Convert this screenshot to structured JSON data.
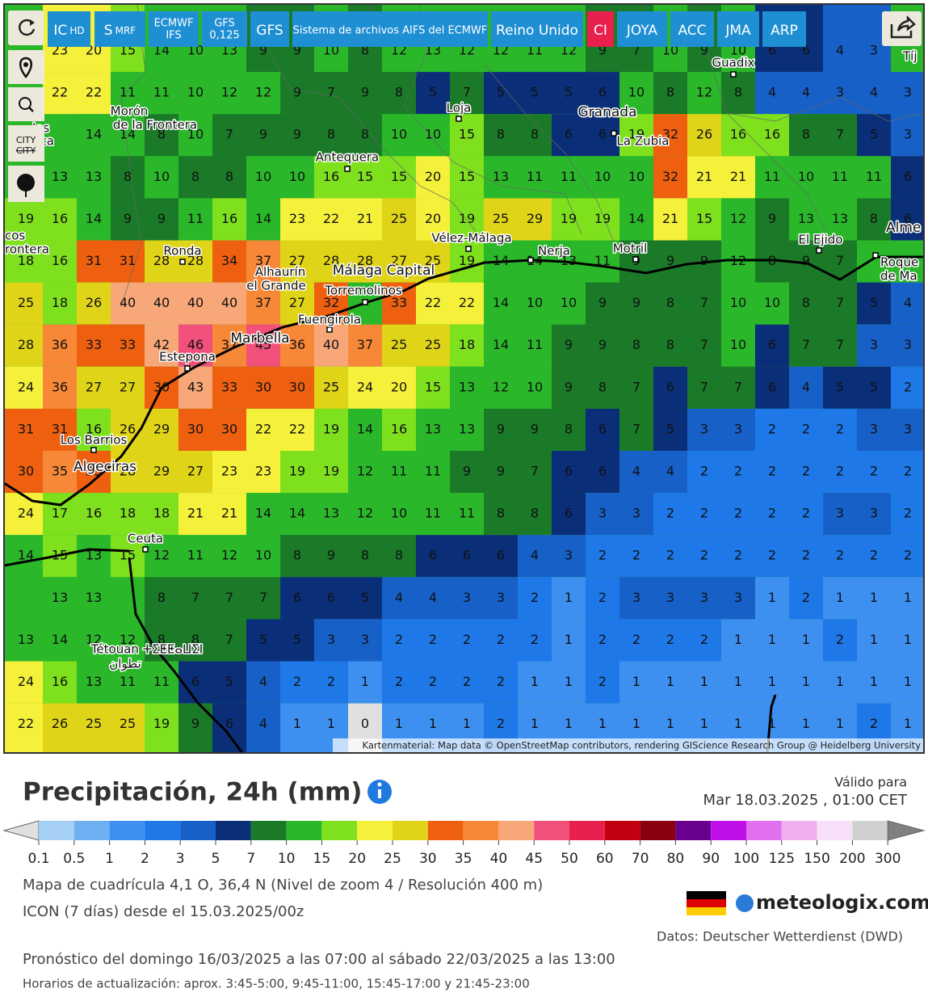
{
  "toolbar": {
    "buttons": [
      {
        "label": "IC",
        "sub": "HD"
      },
      {
        "label": "S",
        "sub": "MRF"
      },
      {
        "lines": [
          "ECMWF",
          "IFS"
        ]
      },
      {
        "lines": [
          "GFS",
          "0,125"
        ]
      },
      {
        "label": "GFS"
      },
      {
        "label": "Sistema de archivos AIFS del ECMWF"
      },
      {
        "label": "Reino Unido"
      },
      {
        "label": "CI"
      },
      {
        "label": "JOYA"
      },
      {
        "label": "ACC"
      },
      {
        "label": "JMA"
      },
      {
        "label": "ARP"
      }
    ],
    "city_toggle": [
      "CITY",
      "CITY"
    ]
  },
  "map": {
    "grid": [
      [
        null,
        23,
        20,
        15,
        14,
        10,
        13,
        9,
        9,
        10,
        8,
        12,
        13,
        12,
        12,
        11,
        12,
        9,
        7,
        10,
        9,
        10,
        6,
        6,
        4,
        3,
        null
      ],
      [
        null,
        22,
        22,
        11,
        11,
        10,
        12,
        12,
        9,
        7,
        9,
        8,
        5,
        7,
        5,
        5,
        5,
        6,
        10,
        8,
        12,
        8,
        4,
        4,
        3,
        4,
        3
      ],
      [
        null,
        null,
        14,
        14,
        8,
        10,
        7,
        9,
        9,
        8,
        8,
        10,
        10,
        15,
        8,
        8,
        6,
        6,
        19,
        32,
        26,
        16,
        16,
        8,
        7,
        5,
        3
      ],
      [
        null,
        13,
        13,
        8,
        10,
        8,
        8,
        10,
        10,
        16,
        15,
        15,
        20,
        15,
        13,
        11,
        11,
        10,
        10,
        32,
        21,
        21,
        11,
        10,
        11,
        11,
        6
      ],
      [
        19,
        16,
        14,
        9,
        9,
        11,
        16,
        14,
        23,
        22,
        21,
        25,
        20,
        19,
        25,
        29,
        19,
        19,
        14,
        21,
        15,
        12,
        9,
        13,
        13,
        8,
        6
      ],
      [
        18,
        16,
        31,
        31,
        28,
        28,
        34,
        37,
        27,
        28,
        28,
        27,
        25,
        19,
        14,
        14,
        13,
        11,
        9,
        9,
        9,
        12,
        8,
        9,
        7,
        null,
        null
      ],
      [
        25,
        18,
        26,
        40,
        40,
        40,
        40,
        37,
        27,
        32,
        null,
        33,
        22,
        22,
        14,
        10,
        10,
        9,
        9,
        8,
        7,
        10,
        10,
        8,
        7,
        5,
        4
      ],
      [
        28,
        36,
        33,
        33,
        42,
        46,
        37,
        45,
        36,
        40,
        37,
        25,
        25,
        18,
        14,
        11,
        9,
        9,
        8,
        8,
        7,
        10,
        6,
        7,
        7,
        3,
        3
      ],
      [
        24,
        36,
        27,
        27,
        30,
        43,
        33,
        30,
        30,
        25,
        24,
        20,
        15,
        13,
        12,
        10,
        9,
        8,
        7,
        6,
        7,
        7,
        6,
        4,
        5,
        5,
        2
      ],
      [
        31,
        31,
        16,
        26,
        29,
        30,
        30,
        22,
        22,
        19,
        14,
        16,
        13,
        13,
        9,
        9,
        8,
        6,
        7,
        5,
        3,
        3,
        2,
        2,
        2,
        3,
        3
      ],
      [
        30,
        35,
        33,
        28,
        29,
        27,
        23,
        23,
        19,
        19,
        12,
        11,
        11,
        9,
        9,
        7,
        6,
        6,
        4,
        4,
        2,
        2,
        2,
        2,
        2,
        2,
        2
      ],
      [
        24,
        17,
        16,
        18,
        18,
        21,
        21,
        14,
        14,
        13,
        12,
        10,
        11,
        11,
        8,
        8,
        6,
        3,
        3,
        2,
        2,
        2,
        2,
        2,
        3,
        3,
        2
      ],
      [
        14,
        15,
        13,
        15,
        12,
        11,
        12,
        10,
        8,
        9,
        8,
        8,
        6,
        6,
        6,
        4,
        3,
        2,
        2,
        2,
        2,
        2,
        2,
        2,
        2,
        2,
        2
      ],
      [
        null,
        13,
        13,
        null,
        8,
        7,
        7,
        7,
        6,
        6,
        5,
        4,
        4,
        3,
        3,
        2,
        1,
        2,
        3,
        3,
        3,
        3,
        1,
        2,
        1,
        1,
        1
      ],
      [
        13,
        14,
        12,
        12,
        8,
        8,
        7,
        5,
        5,
        3,
        3,
        2,
        2,
        2,
        2,
        2,
        1,
        2,
        2,
        2,
        2,
        1,
        1,
        1,
        2,
        1,
        1
      ],
      [
        24,
        16,
        13,
        11,
        11,
        6,
        5,
        4,
        2,
        2,
        1,
        2,
        2,
        2,
        2,
        1,
        1,
        2,
        1,
        1,
        1,
        1,
        1,
        1,
        1,
        1,
        1
      ],
      [
        22,
        26,
        25,
        25,
        19,
        9,
        6,
        4,
        1,
        1,
        0,
        1,
        1,
        1,
        2,
        1,
        1,
        1,
        1,
        1,
        1,
        1,
        1,
        1,
        1,
        2,
        1
      ]
    ],
    "cities": [
      "Guadix",
      "Granada",
      "Loja",
      "Morón",
      "de la Frontera",
      "Antequera",
      "La Zubia",
      "Vélez-Málaga",
      "Nerja",
      "Motril",
      "El Ejido",
      "Alme",
      "Roque",
      "de Ma",
      "Ronda",
      "Alhaurín",
      "el Grande",
      "Málaga Capital",
      "Torremolinos",
      "Fuengirola",
      "Marbella",
      "Estepona",
      "Los Barrios",
      "Algeciras",
      "Ceuta",
      "Tétouan ⵜⵉⵟⵟⴰⵡⵉⵏ",
      "تطوان",
      "Tíj",
      "cos",
      "rontera",
      "los",
      "nca"
    ],
    "attribution": "Kartenmaterial: Map data © OpenStreetMap contributors, rendering GIScience Research Group @ Heidelberg University"
  },
  "header": {
    "title": "Precipitación, 24h (mm)",
    "valid_label": "Válido para",
    "valid_time": "Mar 18.03.2025 , 01:00 CET"
  },
  "legend": {
    "bins": [
      0.1,
      0.5,
      1,
      2,
      3,
      5,
      7,
      10,
      15,
      20,
      25,
      30,
      35,
      40,
      45,
      50,
      60,
      70,
      80,
      90,
      100,
      125,
      150,
      200,
      300
    ],
    "colors": [
      "#a6cff5",
      "#6fb0f2",
      "#3d8ff0",
      "#1e78e8",
      "#1760c8",
      "#0a2f78",
      "#1a7a28",
      "#2ab82a",
      "#7fe01e",
      "#f5f03a",
      "#e0d418",
      "#ee6010",
      "#f78838",
      "#f8a878",
      "#f0507a",
      "#e8204e",
      "#c00010",
      "#8a0010",
      "#6a0090",
      "#c010e8",
      "#e070f0",
      "#f0b0f0",
      "#f8e0f8",
      "#d0d0d0"
    ],
    "under_color": "#e0e0e0",
    "over_color": "#808080"
  },
  "footer": {
    "grid_info": "Mapa de cuadrícula 4,1 O, 36,4 N (Nivel de zoom 4 / Resolución 400 m)",
    "model": "ICON (7 días) desde el 15.03.2025/00z",
    "source": "Datos: Deutscher Wetterdienst (DWD)",
    "logo": "meteologix.com",
    "forecast": "Pronóstico del domingo 16/03/2025 a las 07:00 al sábado 22/03/2025 a las 13:00",
    "updates": "Horarios de actualización: aprox. 3:45-5:00, 9:45-11:00, 15:45-17:00 y 21:45-23:00"
  }
}
